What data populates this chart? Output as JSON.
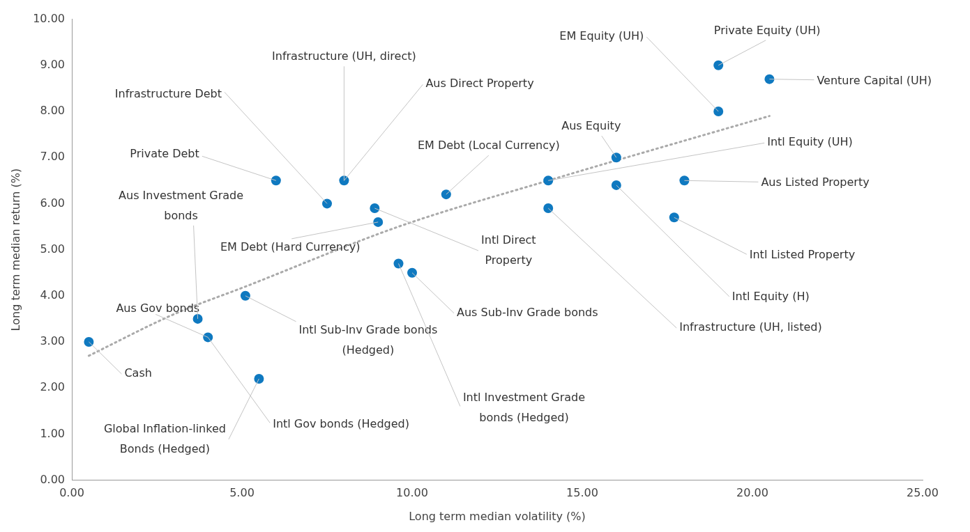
{
  "chart_data": {
    "type": "scatter",
    "xlabel": "Long term median volatility (%)",
    "ylabel": "Long term median return (%)",
    "xlim": [
      0,
      25
    ],
    "ylim": [
      0,
      10
    ],
    "xticks": [
      {
        "value": 0,
        "label": "0.00"
      },
      {
        "value": 5,
        "label": "5.00"
      },
      {
        "value": 10,
        "label": "10.00"
      },
      {
        "value": 15,
        "label": "15.00"
      },
      {
        "value": 20,
        "label": "20.00"
      },
      {
        "value": 25,
        "label": "25.00"
      }
    ],
    "yticks": [
      {
        "value": 0,
        "label": "0.00"
      },
      {
        "value": 1,
        "label": "1.00"
      },
      {
        "value": 2,
        "label": "2.00"
      },
      {
        "value": 3,
        "label": "3.00"
      },
      {
        "value": 4,
        "label": "4.00"
      },
      {
        "value": 5,
        "label": "5.00"
      },
      {
        "value": 6,
        "label": "6.00"
      },
      {
        "value": 7,
        "label": "7.00"
      },
      {
        "value": 8,
        "label": "8.00"
      },
      {
        "value": 9,
        "label": "9.00"
      },
      {
        "value": 10,
        "label": "10.00"
      }
    ],
    "grid": false,
    "legend": false,
    "series": [
      {
        "marker": "circle",
        "color": "#0f79c0",
        "x": [
          0.5,
          3.7,
          4.0,
          5.1,
          5.5,
          6.0,
          7.5,
          8.0,
          8.9,
          9.0,
          9.6,
          10.0,
          11.0,
          14.0,
          14.0,
          16.0,
          16.0,
          17.7,
          18.0,
          19.0,
          19.0,
          20.5
        ],
        "values": [
          3.0,
          3.5,
          3.1,
          4.0,
          2.2,
          6.5,
          6.0,
          6.5,
          5.9,
          5.6,
          4.7,
          4.5,
          6.2,
          6.5,
          5.9,
          7.0,
          6.4,
          5.7,
          6.5,
          8.0,
          9.0,
          8.7
        ]
      },
      {
        "type": "line",
        "marker": "none",
        "color": "#aaaaaa",
        "line_style": "dotted",
        "x": [
          0.5,
          3.0,
          5.1,
          9.6,
          14.0,
          20.5
        ],
        "values": [
          2.7,
          3.6,
          4.2,
          5.5,
          6.5,
          7.9
        ]
      }
    ],
    "annotations": [
      {
        "text": "Cash",
        "x": 0.5,
        "y": 3.0
      },
      {
        "text": "Aus Gov bonds",
        "x": 4.0,
        "y": 3.1
      },
      {
        "text": "Intl Gov bonds (Hedged)",
        "x": 4.0,
        "y": 3.1
      },
      {
        "text": "Aus Investment Grade\nbonds",
        "x": 3.7,
        "y": 3.5
      },
      {
        "text": "Global Inflation-linked\nBonds (Hedged)",
        "x": 5.5,
        "y": 2.2
      },
      {
        "text": "Intl Sub-Inv Grade bonds\n(Hedged)",
        "x": 5.1,
        "y": 4.0
      },
      {
        "text": "Intl Investment Grade\nbonds (Hedged)",
        "x": 9.6,
        "y": 4.7
      },
      {
        "text": "Aus Sub-Inv Grade bonds",
        "x": 10.0,
        "y": 4.5
      },
      {
        "text": "Private Debt",
        "x": 6.0,
        "y": 6.5
      },
      {
        "text": "Infrastructure Debt",
        "x": 7.5,
        "y": 6.0
      },
      {
        "text": "Infrastructure (UH, direct)",
        "x": 8.0,
        "y": 6.5
      },
      {
        "text": "Aus Direct Property",
        "x": 8.0,
        "y": 6.5
      },
      {
        "text": "Intl Direct\nProperty",
        "x": 8.9,
        "y": 5.9
      },
      {
        "text": "EM Debt (Hard Currency)",
        "x": 9.0,
        "y": 5.6
      },
      {
        "text": "EM Debt (Local Currency)",
        "x": 11.0,
        "y": 6.2
      },
      {
        "text": "Aus Equity",
        "x": 16.0,
        "y": 7.0
      },
      {
        "text": "Intl Equity (UH)",
        "x": 14.0,
        "y": 6.5
      },
      {
        "text": "Infrastructure (UH, listed)",
        "x": 14.0,
        "y": 5.9
      },
      {
        "text": "Intl Equity (H)",
        "x": 16.0,
        "y": 6.4
      },
      {
        "text": "Aus Listed Property",
        "x": 18.0,
        "y": 6.5
      },
      {
        "text": "Intl Listed Property",
        "x": 17.7,
        "y": 5.7
      },
      {
        "text": "EM Equity (UH)",
        "x": 19.0,
        "y": 8.0
      },
      {
        "text": "Private Equity (UH)",
        "x": 19.0,
        "y": 9.0
      },
      {
        "text": "Venture Capital (UH)",
        "x": 20.5,
        "y": 8.7
      }
    ]
  }
}
